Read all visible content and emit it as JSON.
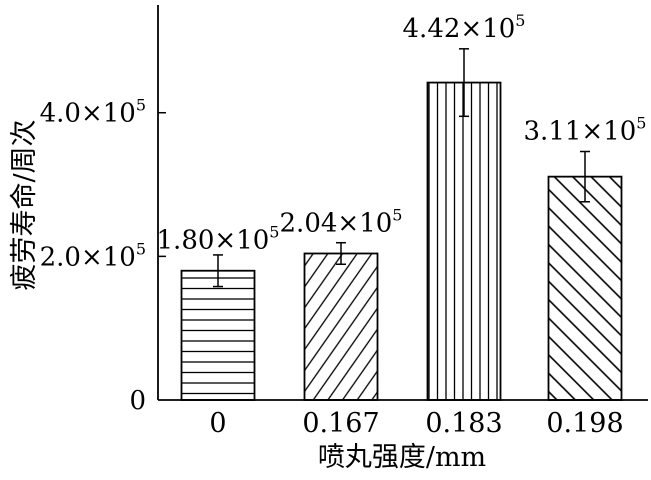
{
  "chart_data": {
    "type": "bar",
    "categories": [
      "0",
      "0.167",
      "0.183",
      "0.198"
    ],
    "values": [
      180000,
      204000,
      442000,
      311000
    ],
    "errors": [
      22000,
      15000,
      47000,
      35000
    ],
    "data_labels": [
      {
        "mantissa": "1.80",
        "exp": "5"
      },
      {
        "mantissa": "2.04",
        "exp": "5"
      },
      {
        "mantissa": "4.42",
        "exp": "5"
      },
      {
        "mantissa": "3.11",
        "exp": "5"
      }
    ],
    "patterns": [
      "horizontal-lines",
      "diagonal-lines",
      "vertical-lines",
      "backslash-lines"
    ],
    "xlabel": "喷丸强度/mm",
    "ylabel": "疲劳寿命/周次",
    "ylim": [
      0,
      550000
    ],
    "yticks": [
      {
        "value": 0,
        "label": "0",
        "exp": ""
      },
      {
        "value": 200000,
        "label": "2.0×10",
        "exp": "5"
      },
      {
        "value": 400000,
        "label": "4.0×10",
        "exp": "5"
      }
    ],
    "grid": false,
    "colors": {
      "bar_fill": "#ffffff",
      "stroke": "#000000"
    }
  }
}
